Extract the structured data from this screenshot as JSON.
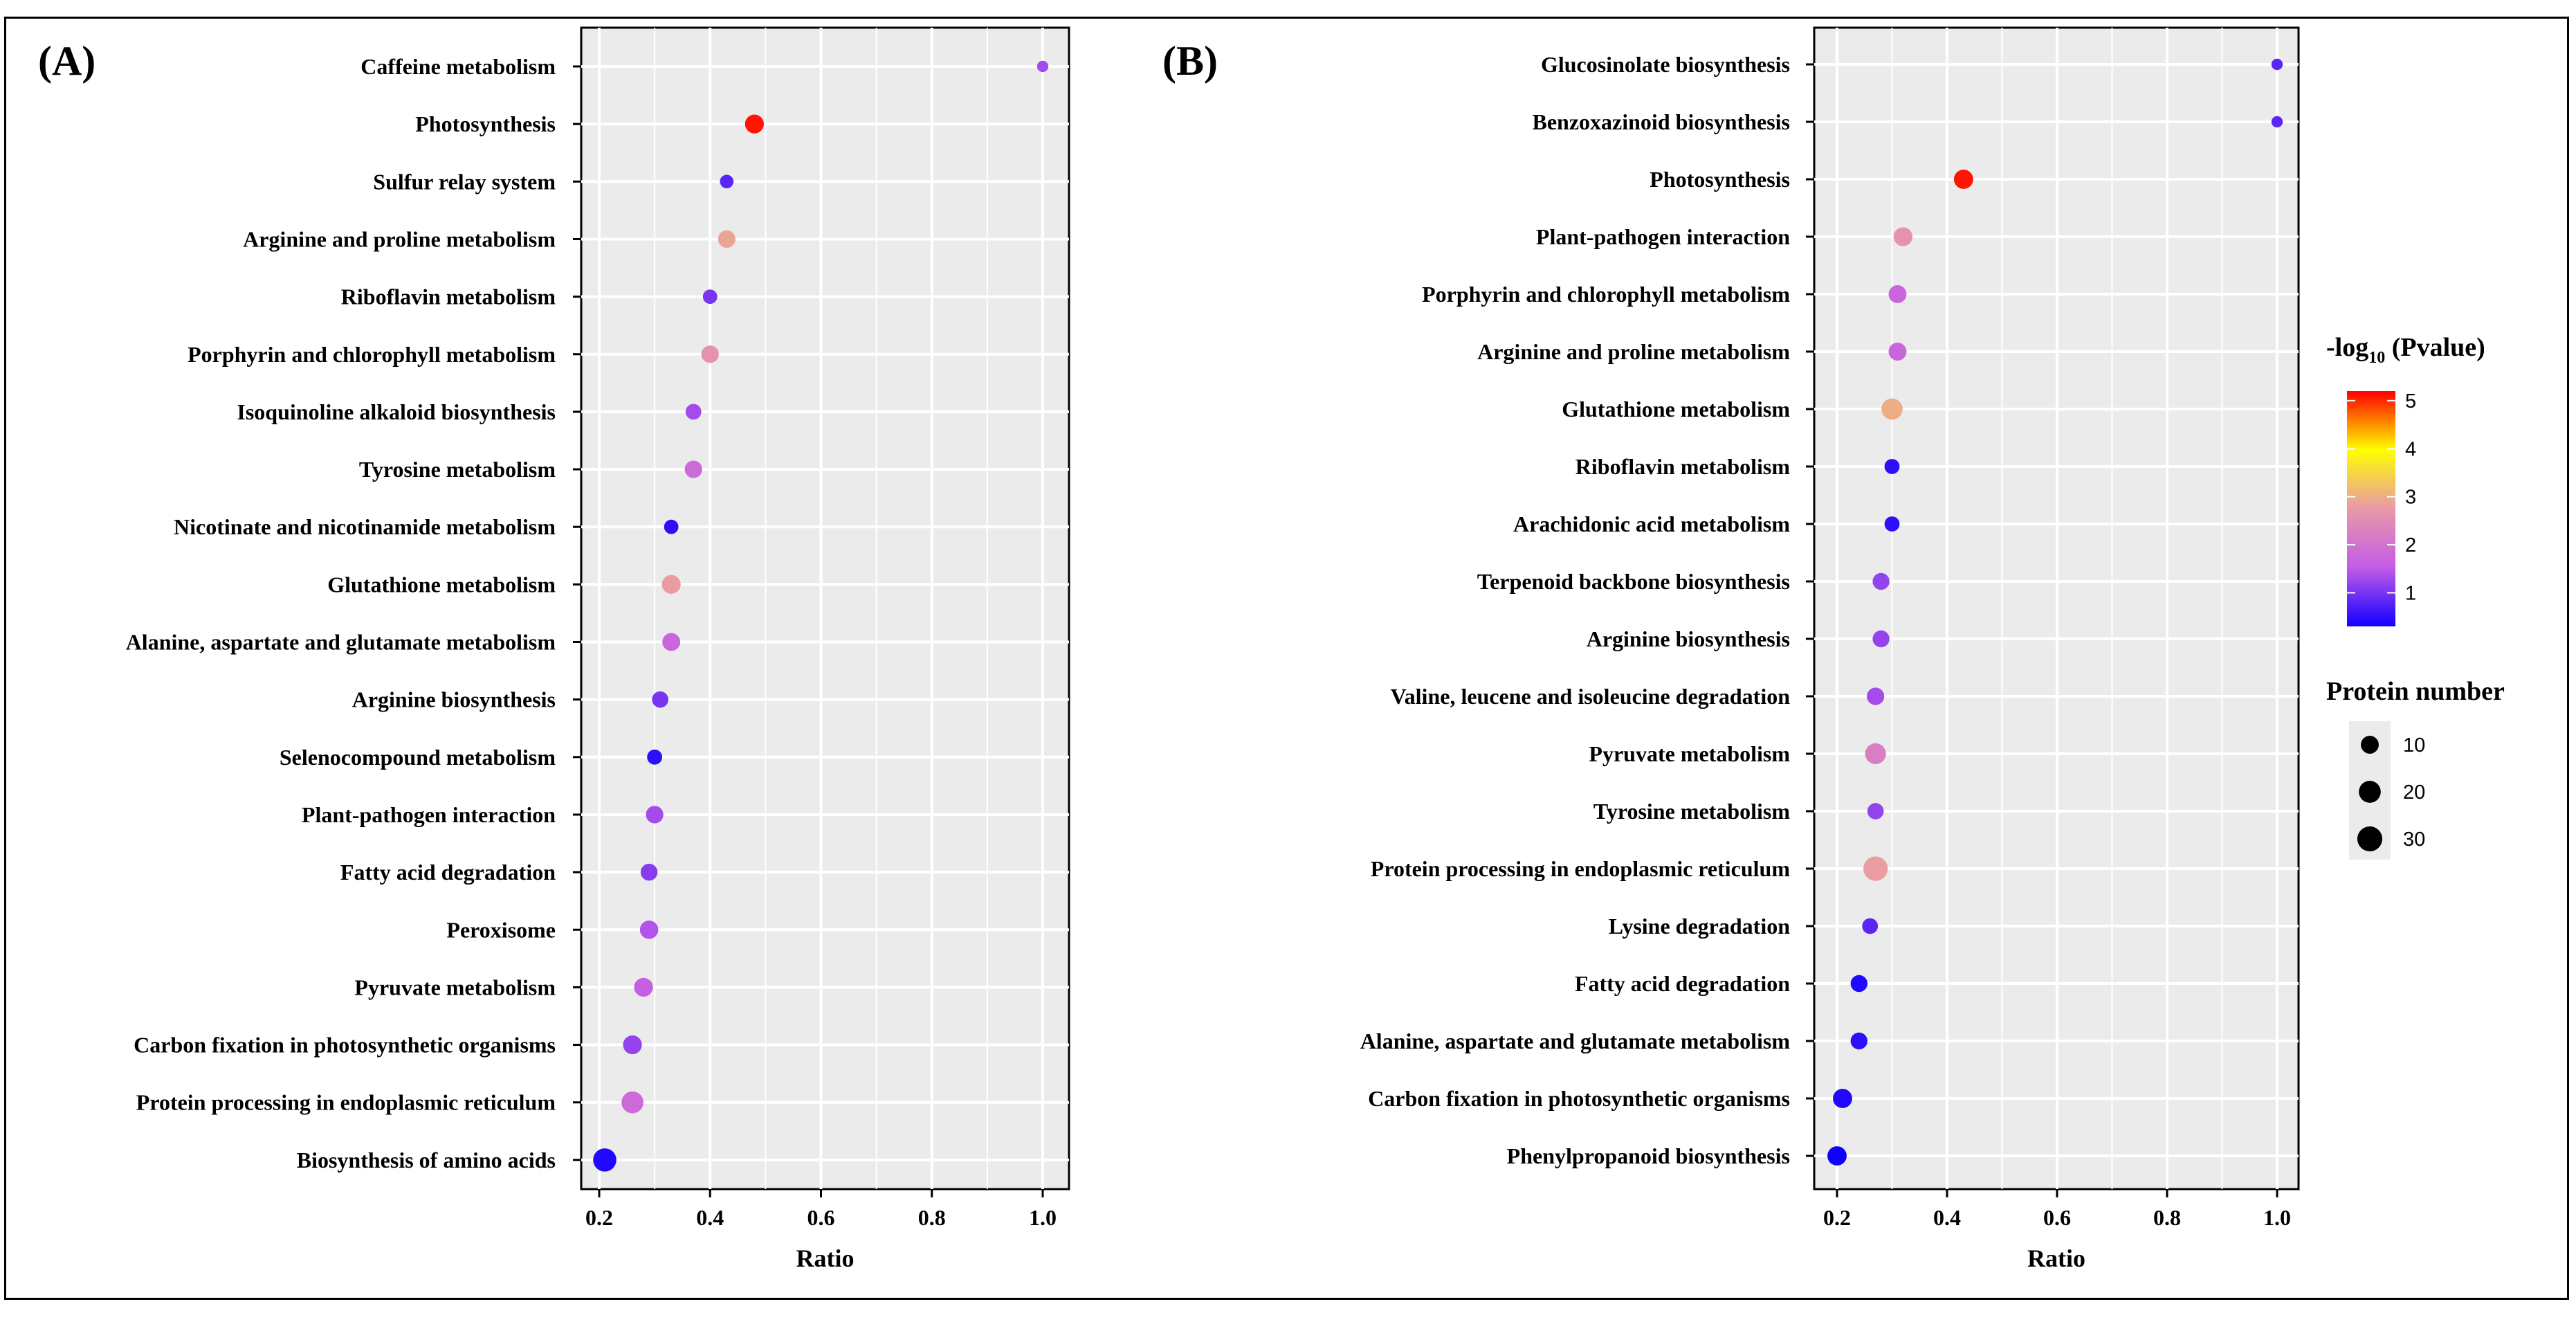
{
  "chart_data": [
    {
      "type": "scatter",
      "panel": "(A)",
      "xlabel": "Ratio",
      "xlim": [
        0.15,
        1.02
      ],
      "xticks": [
        "0.2",
        "0.4",
        "0.6",
        "0.8",
        "1.0"
      ],
      "grid": true,
      "categories": [
        "Caffeine metabolism",
        "Photosynthesis",
        "Sulfur relay system",
        "Arginine and proline metabolism",
        "Riboflavin metabolism",
        "Porphyrin and chlorophyll metabolism",
        "Isoquinoline alkaloid biosynthesis",
        "Tyrosine metabolism",
        "Nicotinate and nicotinamide metabolism",
        "Glutathione metabolism",
        "Alanine, aspartate and glutamate metabolism",
        "Arginine biosynthesis",
        "Selenocompound metabolism",
        "Plant-pathogen interaction",
        "Fatty acid degradation",
        "Peroxisome",
        "Pyruvate metabolism",
        "Carbon fixation in photosynthetic organisms",
        "Protein processing in endoplasmic reticulum",
        "Biosynthesis of amino acids"
      ],
      "ratio": [
        1.0,
        0.48,
        0.43,
        0.43,
        0.4,
        0.4,
        0.37,
        0.37,
        0.33,
        0.33,
        0.33,
        0.31,
        0.3,
        0.3,
        0.29,
        0.29,
        0.28,
        0.26,
        0.26,
        0.21
      ],
      "neg_log10_pvalue": [
        1.3,
        5.1,
        0.8,
        2.9,
        1.0,
        2.6,
        1.3,
        1.8,
        0.5,
        2.8,
        1.7,
        1.0,
        0.5,
        1.3,
        1.1,
        1.4,
        1.6,
        1.2,
        1.8,
        0.4
      ],
      "protein_number": [
        1,
        12,
        3,
        9,
        4,
        9,
        6,
        9,
        4,
        12,
        10,
        7,
        5,
        9,
        8,
        11,
        12,
        12,
        20,
        24
      ]
    },
    {
      "type": "scatter",
      "panel": "(B)",
      "xlabel": "Ratio",
      "xlim": [
        0.18,
        1.02
      ],
      "xticks": [
        "0.2",
        "0.4",
        "0.6",
        "0.8",
        "1.0"
      ],
      "grid": true,
      "categories": [
        "Glucosinolate biosynthesis",
        "Benzoxazinoid biosynthesis",
        "Photosynthesis",
        "Plant-pathogen interaction",
        "Porphyrin and chlorophyll metabolism",
        "Arginine and proline metabolism",
        "Glutathione metabolism",
        "Riboflavin metabolism",
        "Arachidonic acid metabolism",
        "Terpenoid backbone biosynthesis",
        "Arginine biosynthesis",
        "Valine, leucene and isoleucine degradation",
        "Pyruvate metabolism",
        "Tyrosine metabolism",
        "Protein processing in endoplasmic reticulum",
        "Lysine degradation",
        "Fatty acid degradation",
        "Alanine, aspartate and glutamate metabolism",
        "Carbon fixation in photosynthetic organisms",
        "Phenylpropanoid biosynthesis"
      ],
      "ratio": [
        1.0,
        1.0,
        0.43,
        0.32,
        0.31,
        0.31,
        0.3,
        0.3,
        0.3,
        0.28,
        0.28,
        0.27,
        0.27,
        0.27,
        0.27,
        0.26,
        0.24,
        0.24,
        0.21,
        0.2
      ],
      "neg_log10_pvalue": [
        0.8,
        0.8,
        5.1,
        2.6,
        1.7,
        1.7,
        3.0,
        0.5,
        0.5,
        1.2,
        1.2,
        1.3,
        2.2,
        1.2,
        2.8,
        0.8,
        0.4,
        0.5,
        0.4,
        0.3
      ],
      "protein_number": [
        1,
        1,
        13,
        12,
        10,
        10,
        18,
        5,
        5,
        8,
        8,
        9,
        17,
        7,
        28,
        6,
        8,
        8,
        13,
        13
      ]
    }
  ],
  "legend": {
    "color_title_prefix": "-log",
    "color_title_sub": "10",
    "color_title_suffix": " (Pvalue)",
    "color_ticks": [
      "5",
      "4",
      "3",
      "2",
      "1"
    ],
    "color_tick_values": [
      5,
      4,
      3,
      2,
      1
    ],
    "color_range": [
      0.3,
      5.2
    ],
    "color_stops": [
      "#1000ff",
      "#c45ce6",
      "#e899a8",
      "#ffff00",
      "#ff0000"
    ],
    "size_title": "Protein number",
    "size_labels": [
      "10",
      "20",
      "30"
    ],
    "size_values": [
      10,
      20,
      30
    ]
  },
  "colors": {
    "panel_bg": "#ebebeb",
    "grid": "#ffffff"
  }
}
